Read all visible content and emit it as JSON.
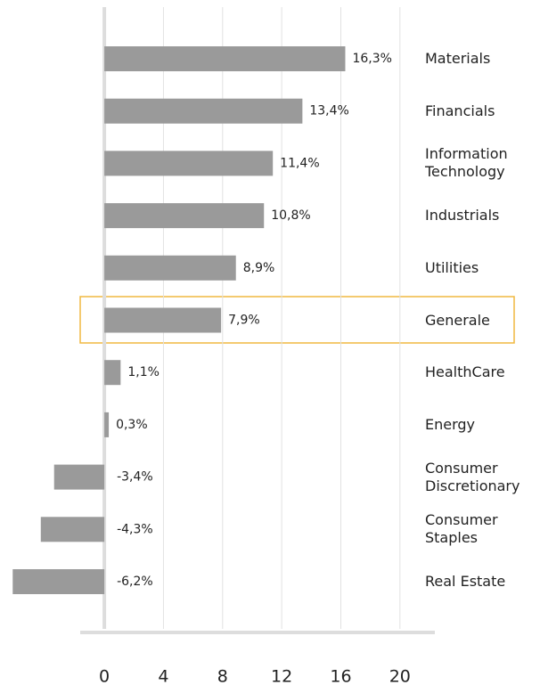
{
  "chart_data": {
    "type": "bar",
    "orientation": "horizontal",
    "categories": [
      "Materials",
      "Financials",
      "Information Technology",
      "Industrials",
      "Utilities",
      "Generale",
      "HealthCare",
      "Energy",
      "Consumer Discretionary",
      "Consumer Staples",
      "Real Estate"
    ],
    "values": [
      16.3,
      13.4,
      11.4,
      10.8,
      8.9,
      7.9,
      1.1,
      0.3,
      -3.4,
      -4.3,
      -6.2
    ],
    "value_labels": [
      "16,3%",
      "13,4%",
      "11,4%",
      "10,8%",
      "8,9%",
      "7,9%",
      "1,1%",
      "0,3%",
      "-3,4%",
      "-4,3%",
      "-6,2%"
    ],
    "color": "#9a9a9a",
    "xlim": [
      -7,
      22
    ],
    "xticks": [
      0,
      4,
      8,
      12,
      16,
      20
    ],
    "grid": true
  }
}
